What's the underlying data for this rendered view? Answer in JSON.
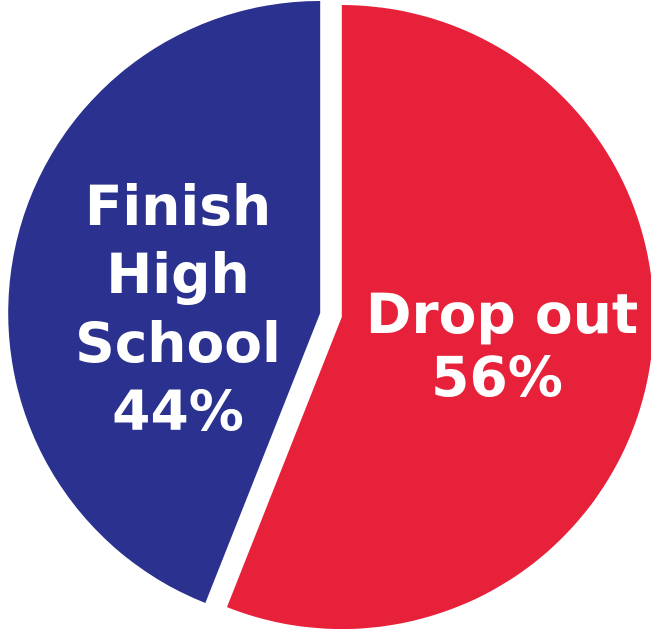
{
  "chart_data": {
    "type": "pie",
    "slices": [
      {
        "label": "Drop out",
        "value": 56,
        "value_label": "56%",
        "color": "#e8213a"
      },
      {
        "label": "Finish High School",
        "label_lines": [
          "Finish",
          "High",
          "School"
        ],
        "value": 44,
        "value_label": "44%",
        "color": "#2b318e"
      }
    ],
    "legend": "none",
    "exploded": true
  }
}
